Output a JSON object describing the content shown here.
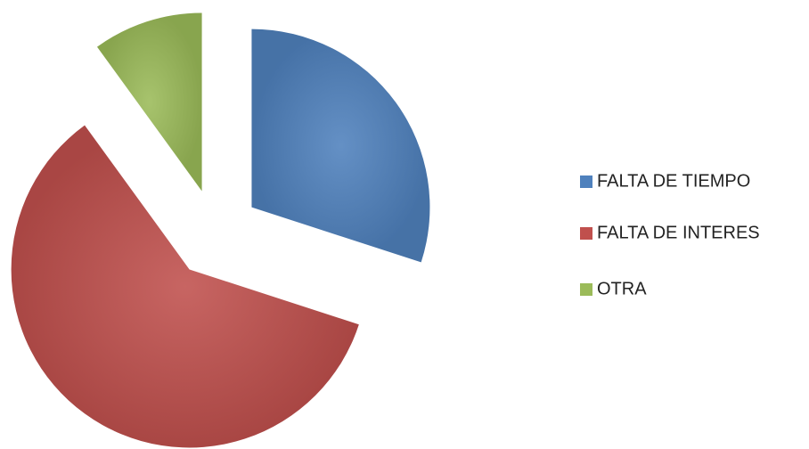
{
  "chart_data": {
    "type": "pie",
    "categories": [
      "FALTA DE TIEMPO",
      "FALTA DE INTERES",
      "OTRA"
    ],
    "values": [
      30,
      60,
      10
    ],
    "colors": [
      "#4f81bd",
      "#c0504d",
      "#9bbb59"
    ],
    "exploded": true,
    "legend": "right"
  }
}
